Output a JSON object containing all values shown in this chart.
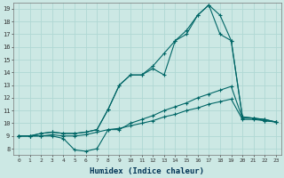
{
  "xlabel": "Humidex (Indice chaleur)",
  "bg_color": "#cce8e4",
  "grid_color": "#b0d8d4",
  "line_color": "#006666",
  "xlim": [
    -0.5,
    23.5
  ],
  "ylim": [
    7.5,
    19.5
  ],
  "xticks": [
    0,
    1,
    2,
    3,
    4,
    5,
    6,
    7,
    8,
    9,
    10,
    11,
    12,
    13,
    14,
    15,
    16,
    17,
    18,
    19,
    20,
    21,
    22,
    23
  ],
  "yticks": [
    8,
    9,
    10,
    11,
    12,
    13,
    14,
    15,
    16,
    17,
    18,
    19
  ],
  "series": [
    [
      9.0,
      9.0,
      9.0,
      9.0,
      8.8,
      7.9,
      7.8,
      8.0,
      9.5,
      9.5,
      10.0,
      10.3,
      10.6,
      11.0,
      11.3,
      11.6,
      12.0,
      12.3,
      12.6,
      12.9,
      10.4,
      10.4,
      10.2,
      10.1
    ],
    [
      9.0,
      9.0,
      9.0,
      9.1,
      9.0,
      9.0,
      9.1,
      9.3,
      9.5,
      9.6,
      9.8,
      10.0,
      10.2,
      10.5,
      10.7,
      11.0,
      11.2,
      11.5,
      11.7,
      11.9,
      10.3,
      10.3,
      10.2,
      10.1
    ],
    [
      9.0,
      9.0,
      9.2,
      9.3,
      9.2,
      9.2,
      9.3,
      9.5,
      11.1,
      13.0,
      13.8,
      13.8,
      14.3,
      13.8,
      16.5,
      17.0,
      18.5,
      19.3,
      17.0,
      16.5,
      10.5,
      10.4,
      10.3,
      10.1
    ],
    [
      9.0,
      9.0,
      9.2,
      9.3,
      9.2,
      9.2,
      9.3,
      9.5,
      11.1,
      13.0,
      13.8,
      13.8,
      14.5,
      15.5,
      16.5,
      17.3,
      18.5,
      19.3,
      18.5,
      16.5,
      10.5,
      10.4,
      10.3,
      10.1
    ]
  ]
}
